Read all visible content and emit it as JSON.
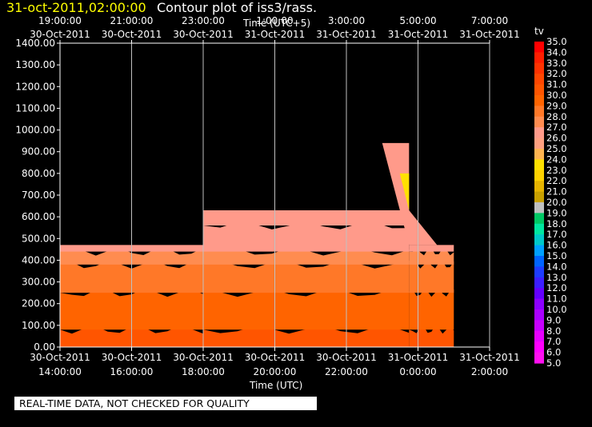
{
  "header": {
    "date": "31-oct-2011,02:00:00",
    "title": "Contour plot of iss3/rass."
  },
  "notice": "REAL-TIME DATA, NOT CHECKED FOR QUALITY",
  "chart_data": {
    "type": "heatmap",
    "title": "Contour plot of iss3/rass.",
    "xlabel_top": "Time (UTC+5)",
    "xlabel_bottom": "Time (UTC)",
    "ylabel": "",
    "ylim": [
      0,
      1400
    ],
    "xlim": [
      "30-Oct-2011 14:00:00",
      "31-Oct-2011 02:00:00"
    ],
    "grid": true,
    "y_ticks": [
      "0.00",
      "100.00",
      "200.00",
      "300.00",
      "400.00",
      "500.00",
      "600.00",
      "700.00",
      "800.00",
      "900.00",
      "1000.00",
      "1100.00",
      "1200.00",
      "1300.00",
      "1400.00"
    ],
    "x_ticks_bottom": [
      {
        "time": "14:00:00",
        "date": "30-Oct-2011"
      },
      {
        "time": "16:00:00",
        "date": "30-Oct-2011"
      },
      {
        "time": "18:00:00",
        "date": "30-Oct-2011"
      },
      {
        "time": "20:00:00",
        "date": "30-Oct-2011"
      },
      {
        "time": "22:00:00",
        "date": "30-Oct-2011"
      },
      {
        "time": "0:00:00",
        "date": "31-Oct-2011"
      },
      {
        "time": "2:00:00",
        "date": "31-Oct-2011"
      }
    ],
    "x_ticks_top": [
      {
        "time": "19:00:00",
        "date": "30-Oct-2011"
      },
      {
        "time": "21:00:00",
        "date": "30-Oct-2011"
      },
      {
        "time": "23:00:00",
        "date": "30-Oct-2011"
      },
      {
        "time": "1:00:00",
        "date": "31-Oct-2011"
      },
      {
        "time": "3:00:00",
        "date": "31-Oct-2011"
      },
      {
        "time": "5:00:00",
        "date": "31-Oct-2011"
      },
      {
        "time": "7:00:00",
        "date": "31-Oct-2011"
      }
    ],
    "colorbar": {
      "label": "tv",
      "levels": [
        "35.0",
        "34.0",
        "33.0",
        "32.0",
        "31.0",
        "30.0",
        "29.0",
        "28.0",
        "27.0",
        "26.0",
        "25.0",
        "24.0",
        "23.0",
        "22.0",
        "21.0",
        "20.0",
        "19.0",
        "18.0",
        "17.0",
        "16.0",
        "15.0",
        "14.0",
        "13.0",
        "12.0",
        "11.0",
        "10.0",
        "9.0",
        "8.0",
        "7.0",
        "6.0",
        "5.0"
      ],
      "colors": [
        "#ff0000",
        "#ff1e00",
        "#ff3200",
        "#ff4600",
        "#ff5500",
        "#ff6400",
        "#ff7828",
        "#ff8c50",
        "#ff9a8a",
        "#ffa080",
        "#ffb450",
        "#ffe100",
        "#ffd200",
        "#e6b400",
        "#c8a000",
        "#c0c0c0",
        "#00c864",
        "#00e6a0",
        "#00c8c8",
        "#00a0ff",
        "#0064ff",
        "#1e3cff",
        "#3c1eff",
        "#6400ff",
        "#8c00ff",
        "#aa00ff",
        "#c800ff",
        "#e600ff",
        "#ff00ff",
        "#ff10f0"
      ]
    },
    "data_extent": [
      {
        "t_start": "30-Oct-2011 14:00:00",
        "t_end": "30-Oct-2011 18:00:00",
        "top_m": 470
      },
      {
        "t_start": "30-Oct-2011 18:00:00",
        "t_end": "30-Oct-2011 23:45:00",
        "top_m": 630
      },
      {
        "t_start": "30-Oct-2011 23:45:00",
        "t_end": "31-Oct-2011 01:00:00",
        "top_m": 470
      }
    ],
    "bands": [
      {
        "from_m": 0,
        "to_m": 80,
        "value": 30.5
      },
      {
        "from_m": 80,
        "to_m": 250,
        "value": 30.0
      },
      {
        "from_m": 250,
        "to_m": 380,
        "value": 29.0
      },
      {
        "from_m": 380,
        "to_m": 440,
        "value": 28.0
      },
      {
        "from_m": 440,
        "to_m": 560,
        "value": 27.0
      },
      {
        "from_m": 560,
        "to_m": 630,
        "value": 26.5
      }
    ]
  }
}
